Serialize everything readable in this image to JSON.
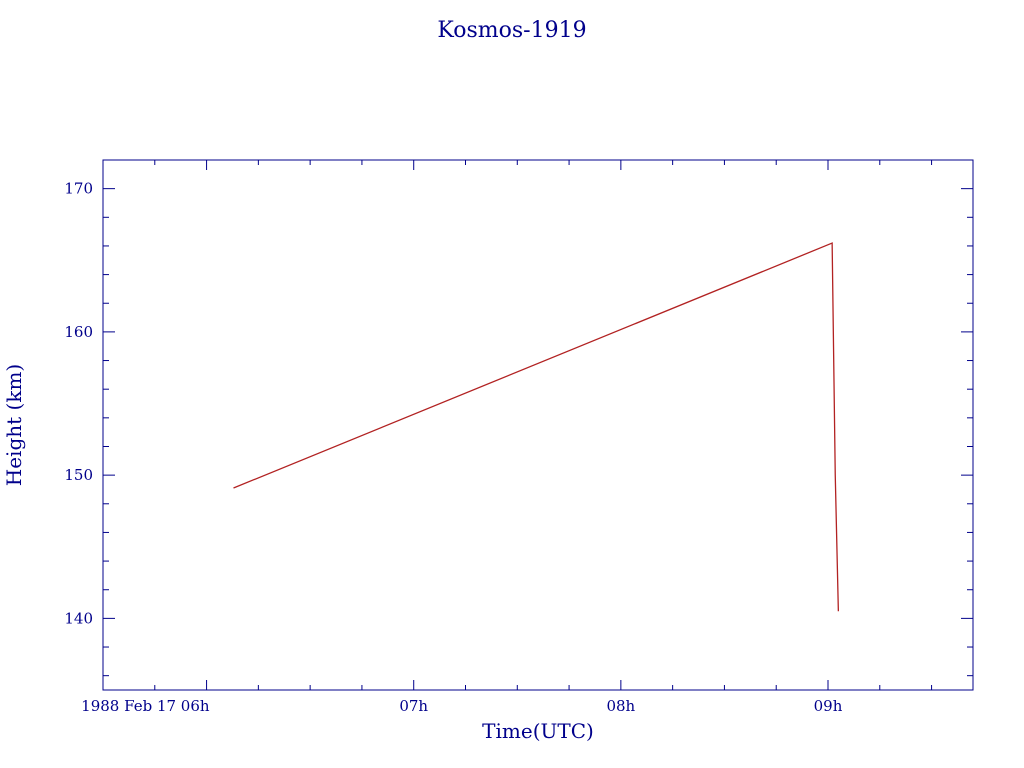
{
  "chart_data": {
    "type": "line",
    "title": "Kosmos-1919",
    "xlabel": "Time(UTC)",
    "ylabel": "Height (km)",
    "x_units": "hours UTC, 1988 Feb 17",
    "xlim": [
      5.5,
      9.7
    ],
    "ylim": [
      135,
      172
    ],
    "x_ticks": [
      {
        "value": 6,
        "label": "1988 Feb 17  06h"
      },
      {
        "value": 7,
        "label": "07h"
      },
      {
        "value": 8,
        "label": "08h"
      },
      {
        "value": 9,
        "label": "09h"
      }
    ],
    "y_ticks": [
      {
        "value": 140,
        "label": "140"
      },
      {
        "value": 150,
        "label": "150"
      },
      {
        "value": 160,
        "label": "160"
      },
      {
        "value": 170,
        "label": "170"
      }
    ],
    "grid": false,
    "series": [
      {
        "points": [
          {
            "x": 6.13,
            "y": 149.1
          },
          {
            "x": 9.02,
            "y": 166.2
          },
          {
            "x": 9.035,
            "y": 150.0
          },
          {
            "x": 9.05,
            "y": 140.5
          }
        ]
      }
    ]
  },
  "colors": {
    "axis": "#00008b",
    "text": "#00008b",
    "series": "#b22222"
  }
}
